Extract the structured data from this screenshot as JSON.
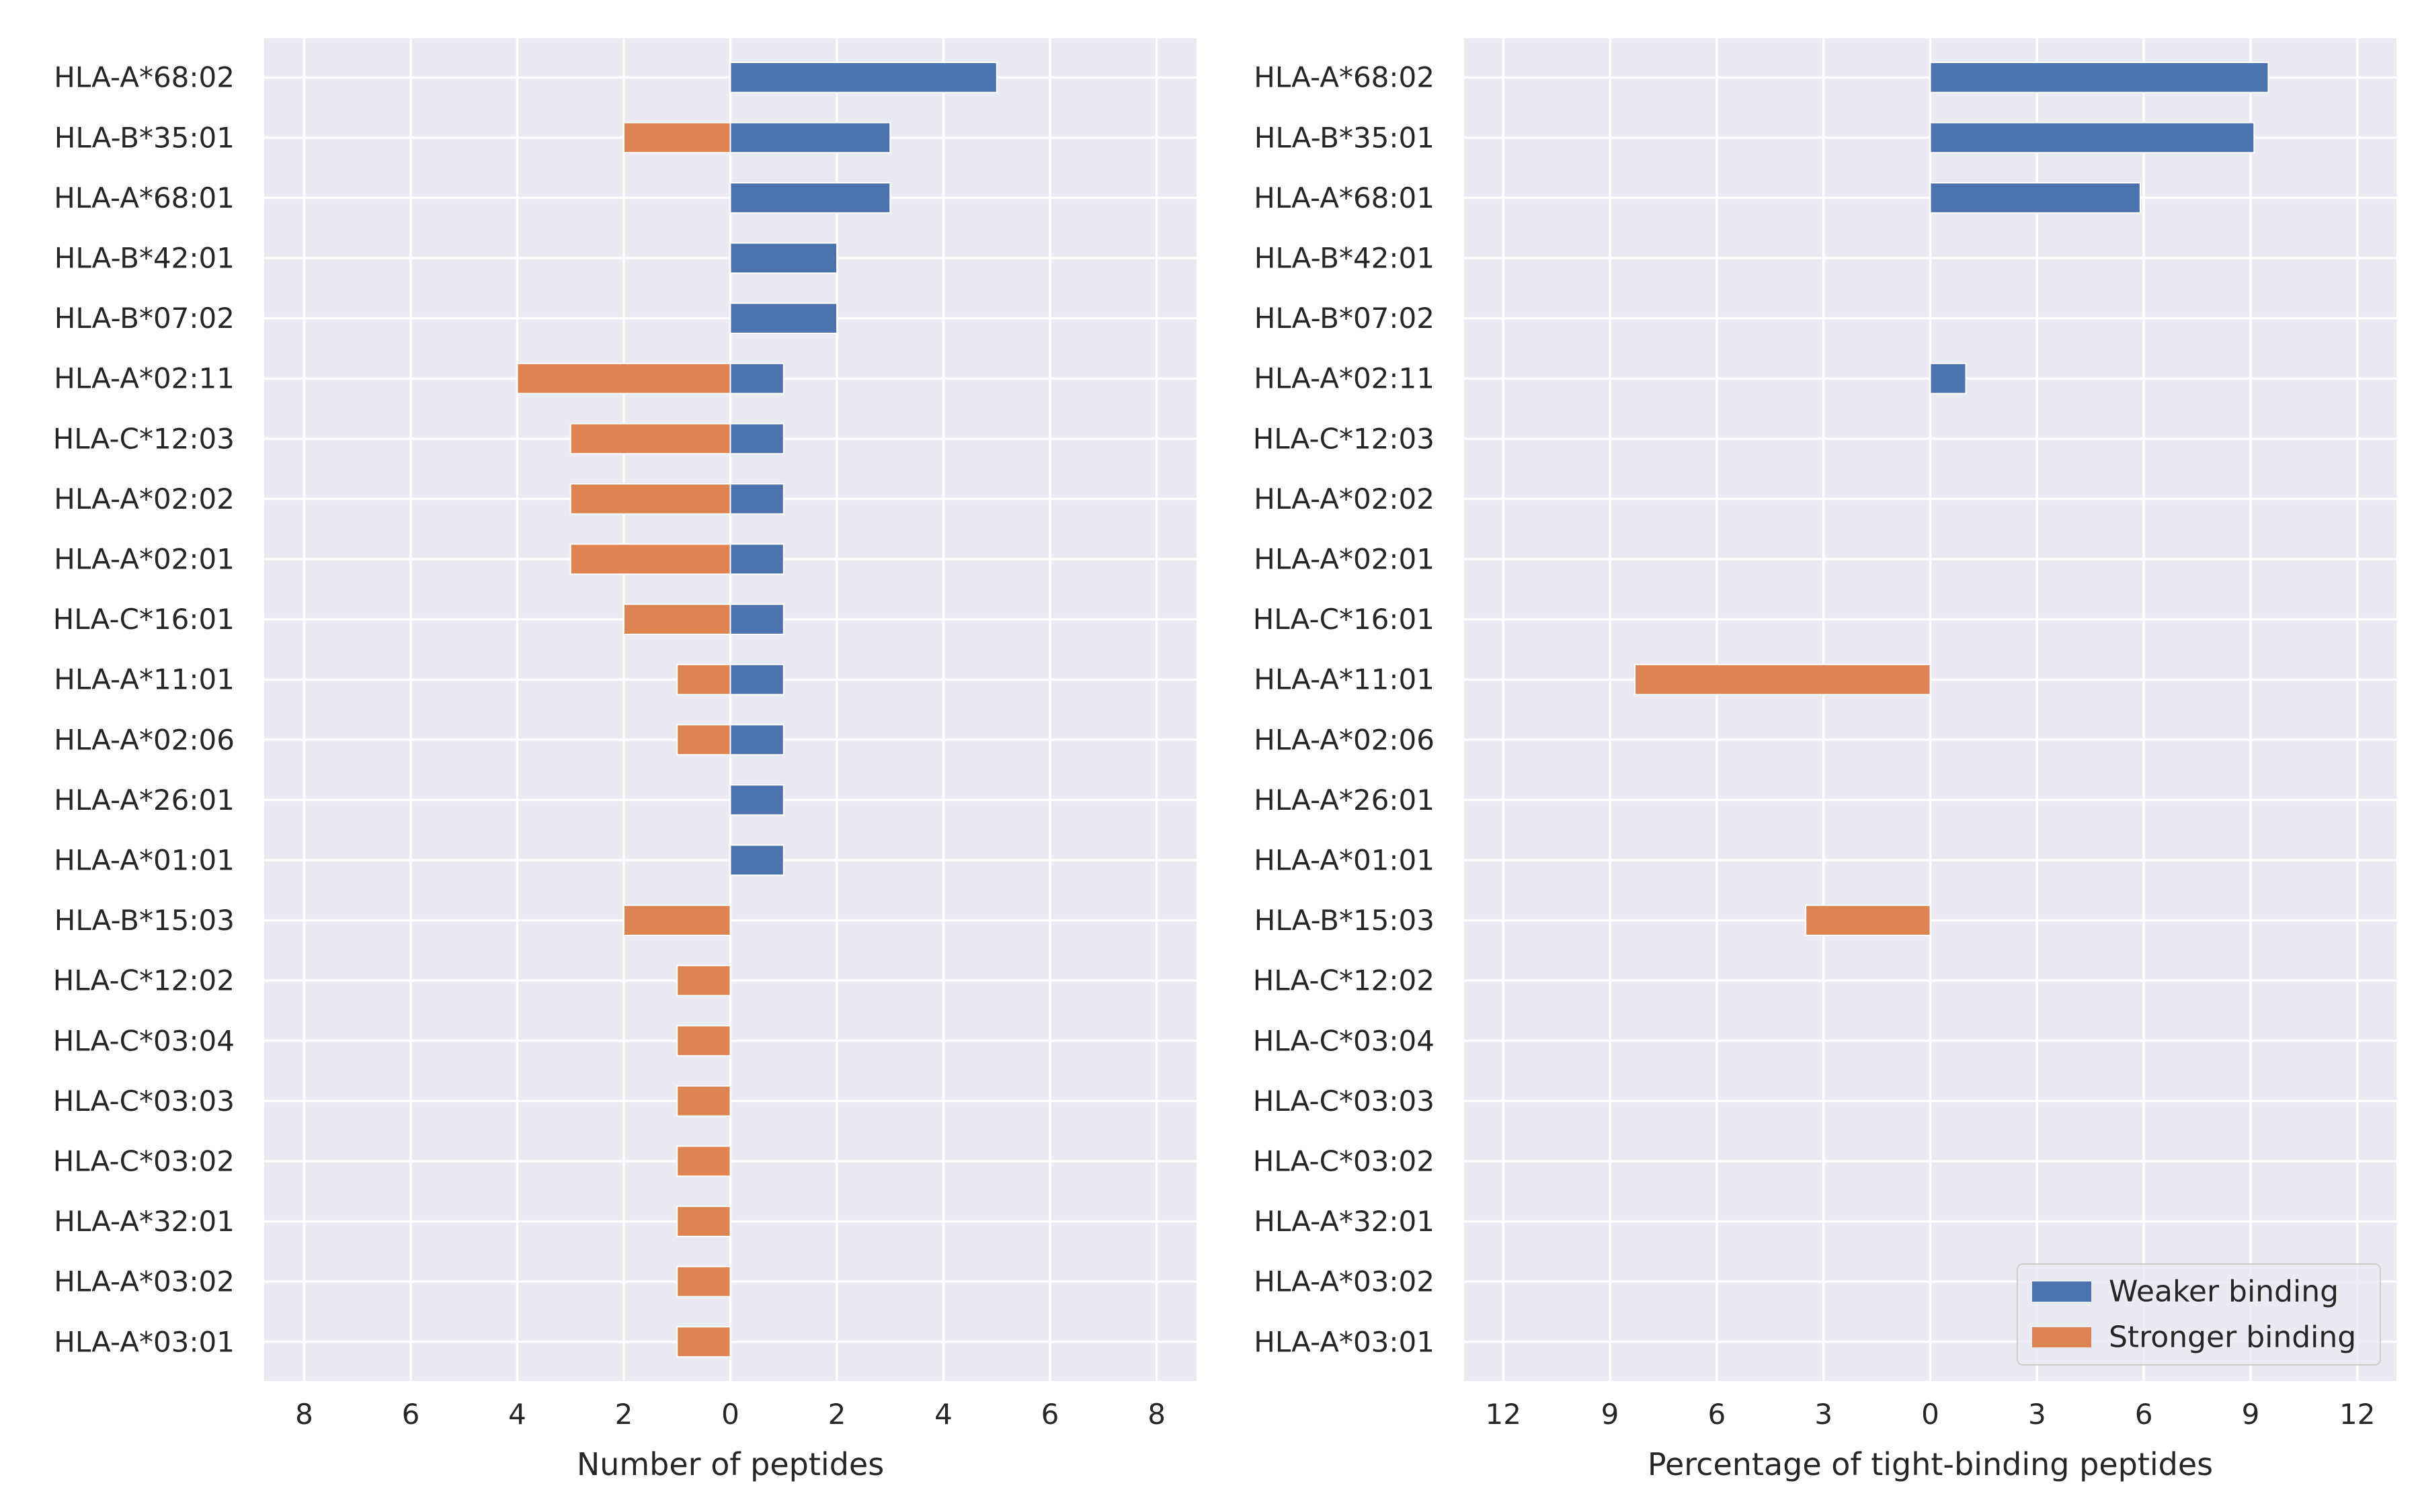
{
  "chart_data": [
    {
      "type": "bar",
      "orientation": "horizontal-diverging",
      "categories": [
        "HLA-A*68:02",
        "HLA-B*35:01",
        "HLA-A*68:01",
        "HLA-B*42:01",
        "HLA-B*07:02",
        "HLA-A*02:11",
        "HLA-C*12:03",
        "HLA-A*02:02",
        "HLA-A*02:01",
        "HLA-C*16:01",
        "HLA-A*11:01",
        "HLA-A*02:06",
        "HLA-A*26:01",
        "HLA-A*01:01",
        "HLA-B*15:03",
        "HLA-C*12:02",
        "HLA-C*03:04",
        "HLA-C*03:03",
        "HLA-C*03:02",
        "HLA-A*32:01",
        "HLA-A*03:02",
        "HLA-A*03:01"
      ],
      "series": [
        {
          "name": "Weaker binding",
          "color": "#4c72b0",
          "direction": "right",
          "values": [
            5,
            3,
            3,
            2,
            2,
            1,
            1,
            1,
            1,
            1,
            1,
            1,
            1,
            1,
            0,
            0,
            0,
            0,
            0,
            0,
            0,
            0
          ]
        },
        {
          "name": "Stronger binding",
          "color": "#dd8452",
          "direction": "left",
          "values": [
            0,
            2,
            0,
            0,
            0,
            4,
            3,
            3,
            3,
            2,
            1,
            1,
            0,
            0,
            2,
            1,
            1,
            1,
            1,
            1,
            1,
            1
          ]
        }
      ],
      "xlabel": "Number of peptides",
      "xlim": [
        -8.75,
        8.75
      ],
      "xticks": [
        -8,
        -6,
        -4,
        -2,
        0,
        2,
        4,
        6,
        8
      ],
      "xtick_labels": [
        "8",
        "6",
        "4",
        "2",
        "0",
        "2",
        "4",
        "6",
        "8"
      ],
      "grid": true
    },
    {
      "type": "bar",
      "orientation": "horizontal-diverging",
      "categories": [
        "HLA-A*68:02",
        "HLA-B*35:01",
        "HLA-A*68:01",
        "HLA-B*42:01",
        "HLA-B*07:02",
        "HLA-A*02:11",
        "HLA-C*12:03",
        "HLA-A*02:02",
        "HLA-A*02:01",
        "HLA-C*16:01",
        "HLA-A*11:01",
        "HLA-A*02:06",
        "HLA-A*26:01",
        "HLA-A*01:01",
        "HLA-B*15:03",
        "HLA-C*12:02",
        "HLA-C*03:04",
        "HLA-C*03:03",
        "HLA-C*03:02",
        "HLA-A*32:01",
        "HLA-A*03:02",
        "HLA-A*03:01"
      ],
      "series": [
        {
          "name": "Weaker binding",
          "color": "#4c72b0",
          "direction": "right",
          "values": [
            9.5,
            9.1,
            5.9,
            0,
            0,
            1.0,
            0,
            0,
            0,
            0,
            0,
            0,
            0,
            0,
            0,
            0,
            0,
            0,
            0,
            0,
            0,
            0
          ]
        },
        {
          "name": "Stronger binding",
          "color": "#dd8452",
          "direction": "left",
          "values": [
            0,
            0,
            0,
            0,
            0,
            0,
            0,
            0,
            0,
            0,
            8.3,
            0,
            0,
            0,
            3.5,
            0,
            0,
            0,
            0,
            0,
            0,
            0
          ]
        }
      ],
      "xlabel": "Percentage of tight-binding peptides",
      "xlim": [
        -13.1,
        13.1
      ],
      "xticks": [
        -12,
        -9,
        -6,
        -3,
        0,
        3,
        6,
        9,
        12
      ],
      "xtick_labels": [
        "12",
        "9",
        "6",
        "3",
        "0",
        "3",
        "6",
        "9",
        "12"
      ],
      "grid": true,
      "legend": {
        "position": "bottom-right",
        "entries": [
          "Weaker binding",
          "Stronger binding"
        ]
      }
    }
  ]
}
